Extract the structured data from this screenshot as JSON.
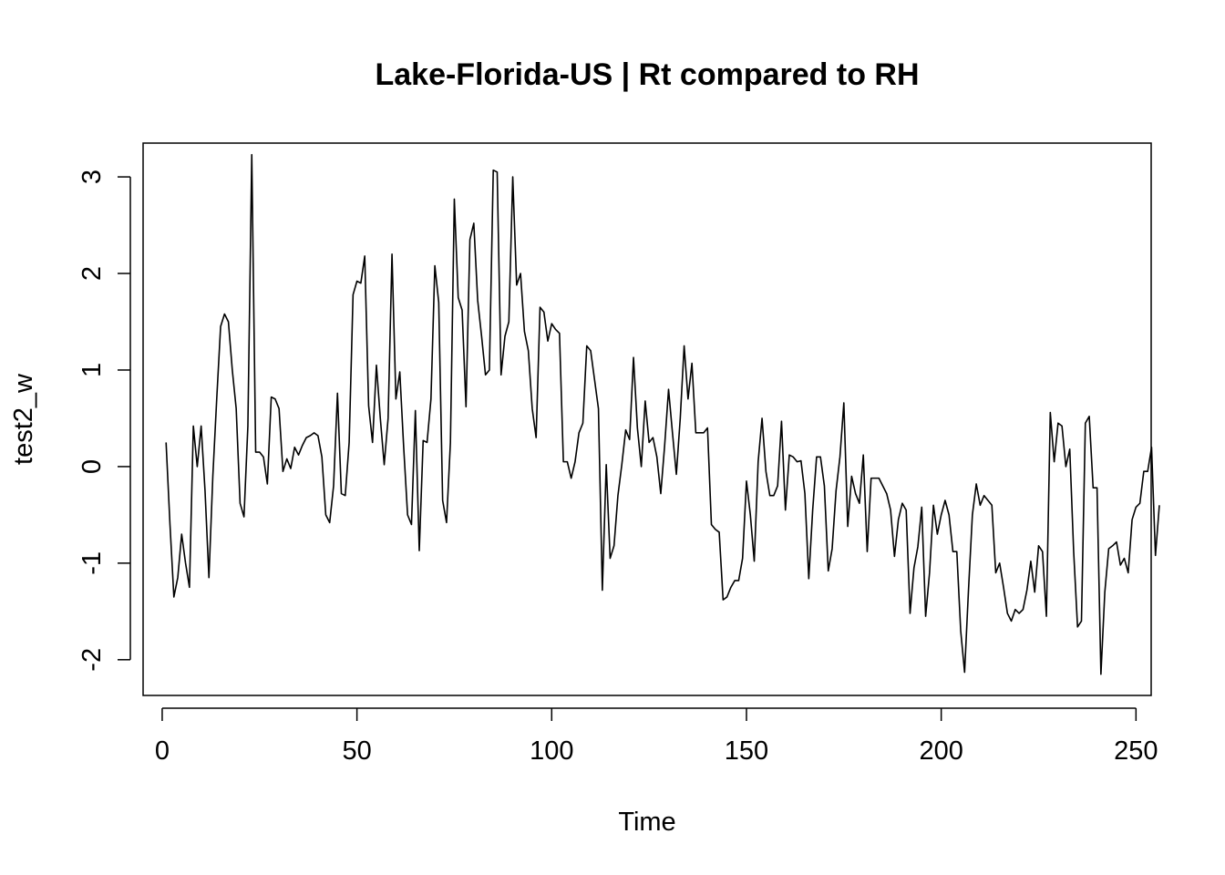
{
  "chart_data": {
    "type": "line",
    "title": "Lake-Florida-US | Rt compared to RH",
    "xlabel": "Time",
    "ylabel": "test2_w",
    "xlim": [
      -4.9,
      253.9
    ],
    "ylim": [
      -2.37,
      3.35
    ],
    "xticks": [
      0,
      50,
      100,
      150,
      200,
      250
    ],
    "yticks": [
      -2,
      -1,
      0,
      1,
      2,
      3
    ],
    "xtick_labels": [
      "0",
      "50",
      "100",
      "150",
      "200",
      "250"
    ],
    "ytick_labels": [
      "-2",
      "-1",
      "0",
      "1",
      "2",
      "3"
    ],
    "grid": false,
    "line_color": "#000000",
    "series": [
      {
        "x_start": 1,
        "values": [
          0.25,
          -0.6,
          -1.35,
          -1.15,
          -0.7,
          -1.0,
          -1.25,
          0.42,
          0.0,
          0.42,
          -0.25,
          -1.15,
          -0.1,
          0.7,
          1.45,
          1.58,
          1.5,
          1.0,
          0.6,
          -0.38,
          -0.52,
          0.42,
          3.23,
          0.15,
          0.15,
          0.1,
          -0.18,
          0.72,
          0.7,
          0.6,
          -0.05,
          0.08,
          -0.02,
          0.2,
          0.12,
          0.22,
          0.3,
          0.32,
          0.35,
          0.32,
          0.1,
          -0.5,
          -0.58,
          -0.2,
          0.76,
          -0.28,
          -0.3,
          0.25,
          1.78,
          1.92,
          1.9,
          2.18,
          0.63,
          0.25,
          1.05,
          0.5,
          0.02,
          0.5,
          2.2,
          0.7,
          0.98,
          0.2,
          -0.5,
          -0.6,
          0.58,
          -0.87,
          0.27,
          0.25,
          0.7,
          2.08,
          1.7,
          -0.35,
          -0.58,
          0.25,
          2.77,
          1.75,
          1.62,
          0.62,
          2.35,
          2.52,
          1.72,
          1.35,
          0.95,
          1.0,
          3.07,
          3.05,
          0.95,
          1.35,
          1.5,
          3.0,
          1.88,
          2.0,
          1.4,
          1.2,
          0.6,
          0.3,
          1.65,
          1.6,
          1.3,
          1.48,
          1.42,
          1.38,
          0.05,
          0.05,
          -0.12,
          0.05,
          0.35,
          0.45,
          1.25,
          1.2,
          0.9,
          0.6,
          -1.28,
          0.02,
          -0.95,
          -0.82,
          -0.3,
          0.02,
          0.38,
          0.28,
          1.13,
          0.4,
          0.0,
          0.68,
          0.25,
          0.3,
          0.1,
          -0.28,
          0.22,
          0.8,
          0.35,
          -0.08,
          0.5,
          1.25,
          0.7,
          1.07,
          0.35,
          0.35,
          0.35,
          0.4,
          -0.6,
          -0.65,
          -0.68,
          -1.38,
          -1.35,
          -1.25,
          -1.18,
          -1.18,
          -0.95,
          -0.15,
          -0.5,
          -0.98,
          0.05,
          0.5,
          -0.05,
          -0.3,
          -0.3,
          -0.2,
          0.47,
          -0.45,
          0.12,
          0.1,
          0.05,
          0.06,
          -0.28,
          -1.16,
          -0.45,
          0.1,
          0.1,
          -0.2,
          -1.08,
          -0.85,
          -0.25,
          0.1,
          0.66,
          -0.62,
          -0.1,
          -0.28,
          -0.38,
          0.12,
          -0.88,
          -0.12,
          -0.12,
          -0.12,
          -0.2,
          -0.28,
          -0.45,
          -0.93,
          -0.55,
          -0.38,
          -0.45,
          -1.52,
          -1.05,
          -0.83,
          -0.42,
          -1.55,
          -1.1,
          -0.4,
          -0.7,
          -0.5,
          -0.35,
          -0.5,
          -0.88,
          -0.88,
          -1.7,
          -2.13,
          -1.28,
          -0.5,
          -0.18,
          -0.4,
          -0.3,
          -0.35,
          -0.4,
          -1.1,
          -1.0,
          -1.25,
          -1.52,
          -1.6,
          -1.48,
          -1.52,
          -1.48,
          -1.28,
          -0.98,
          -1.3,
          -0.82,
          -0.88,
          -1.55,
          0.56,
          0.05,
          0.45,
          0.42,
          0.0,
          0.18,
          -0.88,
          -1.66,
          -1.6,
          0.45,
          0.52,
          -0.22,
          -0.22,
          -2.15,
          -1.3,
          -0.85,
          -0.82,
          -0.78,
          -1.02,
          -0.95,
          -1.1,
          -0.55,
          -0.42,
          -0.38,
          -0.05,
          -0.05,
          0.2,
          -0.92,
          -0.4
        ]
      }
    ]
  }
}
